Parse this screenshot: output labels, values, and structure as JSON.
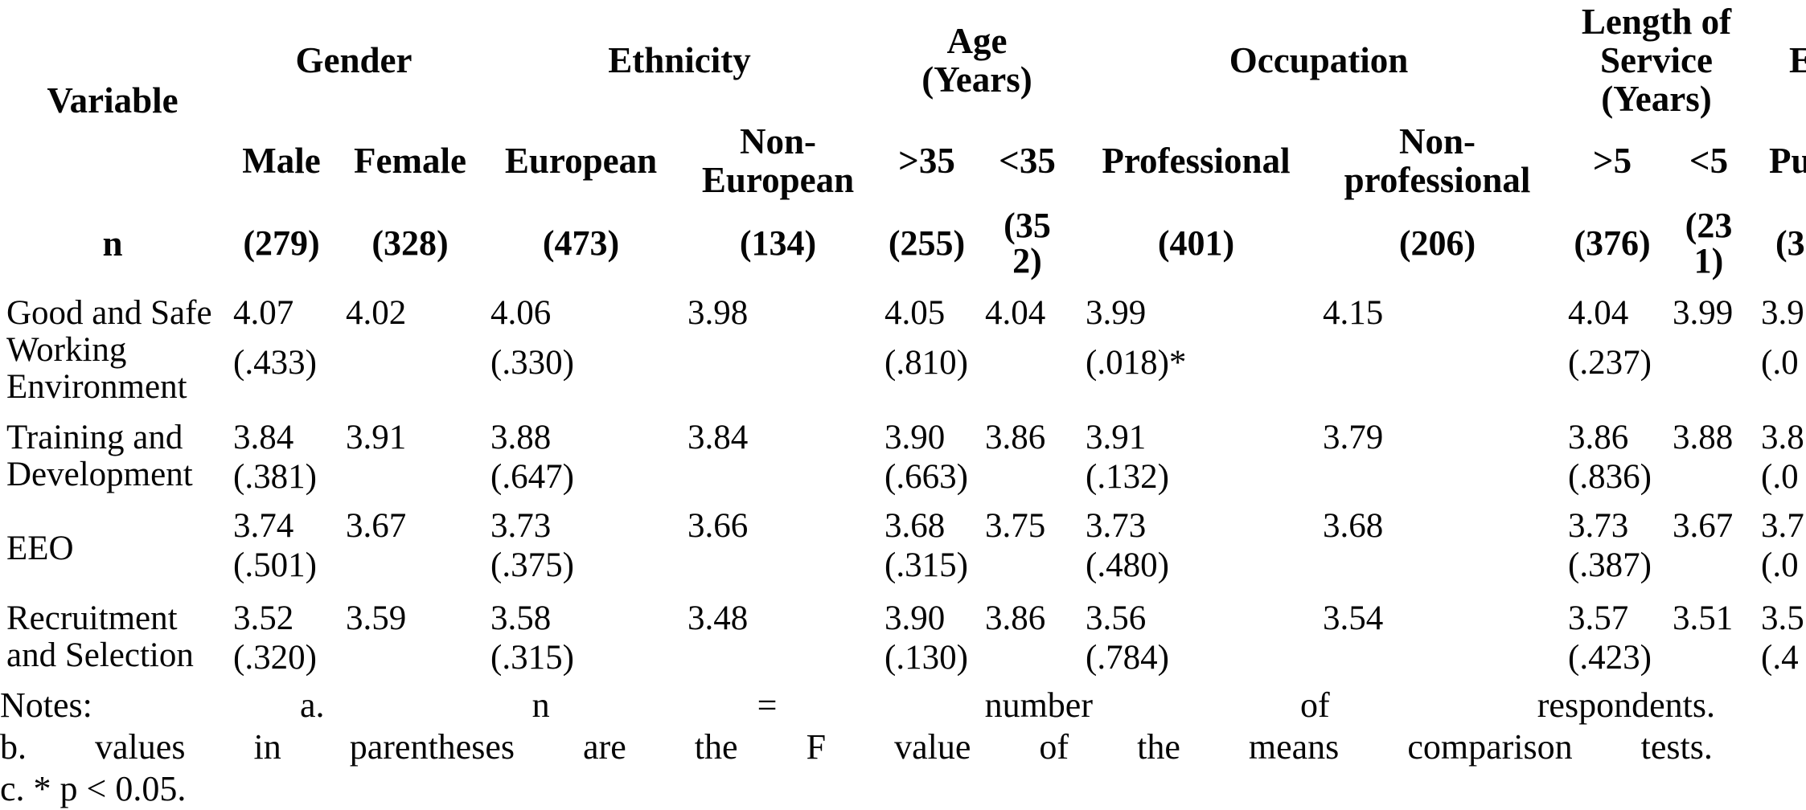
{
  "page": {
    "background": "#ffffff",
    "text_color": "#050505"
  },
  "table": {
    "corner_label": "Variable",
    "n_row_label": "n",
    "groups": [
      {
        "label": "Gender",
        "columns": [
          {
            "header": "Male",
            "n": "(279)"
          },
          {
            "header": "Female",
            "n": "(328)"
          }
        ]
      },
      {
        "label": "Ethnicity",
        "columns": [
          {
            "header": "European",
            "n": "(473)"
          },
          {
            "header": "Non-European",
            "n": "(134)"
          }
        ]
      },
      {
        "label": "Age (Years)",
        "columns": [
          {
            "header": ">35",
            "n": "(255)"
          },
          {
            "header": "<35",
            "n": "(352)",
            "n_wrapped": true
          }
        ]
      },
      {
        "label": "Occupation",
        "columns": [
          {
            "header": "Professional",
            "n": "(401)"
          },
          {
            "header": "Non-professional",
            "n": "(206)"
          }
        ]
      },
      {
        "label": "Length of Service (Years)",
        "columns": [
          {
            "header": ">5",
            "n": "(376)"
          },
          {
            "header": "<5",
            "n": "(231)",
            "n_wrapped": true
          }
        ]
      },
      {
        "label": "E",
        "clipped": true,
        "columns": [
          {
            "header": "Pu",
            "n": "(3",
            "clipped": true
          }
        ]
      }
    ],
    "rows": [
      {
        "variable": "Good and Safe Working Environment",
        "cells": [
          {
            "v": "4.07",
            "f": "(.433)"
          },
          {
            "v": "4.02",
            "f": ""
          },
          {
            "v": "4.06",
            "f": "(.330)"
          },
          {
            "v": "3.98",
            "f": ""
          },
          {
            "v": "4.05",
            "f": "(.810)"
          },
          {
            "v": "4.04",
            "f": ""
          },
          {
            "v": "3.99",
            "f": "(.018)*"
          },
          {
            "v": "4.15",
            "f": ""
          },
          {
            "v": "4.04",
            "f": "(.237)"
          },
          {
            "v": "3.99",
            "f": ""
          },
          {
            "v": "3.9",
            "f": "(.0"
          }
        ]
      },
      {
        "variable": "Training and Development",
        "cells": [
          {
            "v": "3.84",
            "f": "(.381)"
          },
          {
            "v": "3.91",
            "f": ""
          },
          {
            "v": "3.88",
            "f": "(.647)"
          },
          {
            "v": "3.84",
            "f": ""
          },
          {
            "v": "3.90",
            "f": "(.663)"
          },
          {
            "v": "3.86",
            "f": ""
          },
          {
            "v": "3.91",
            "f": "(.132)"
          },
          {
            "v": "3.79",
            "f": ""
          },
          {
            "v": "3.86",
            "f": "(.836)"
          },
          {
            "v": "3.88",
            "f": ""
          },
          {
            "v": "3.8",
            "f": "(.0"
          }
        ]
      },
      {
        "variable": "EEO",
        "cells": [
          {
            "v": "3.74",
            "f": "(.501)"
          },
          {
            "v": "3.67",
            "f": ""
          },
          {
            "v": "3.73",
            "f": "(.375)"
          },
          {
            "v": "3.66",
            "f": ""
          },
          {
            "v": "3.68",
            "f": "(.315)"
          },
          {
            "v": "3.75",
            "f": ""
          },
          {
            "v": "3.73",
            "f": "(.480)"
          },
          {
            "v": "3.68",
            "f": ""
          },
          {
            "v": "3.73",
            "f": "(.387)"
          },
          {
            "v": "3.67",
            "f": ""
          },
          {
            "v": "3.7",
            "f": "(.0"
          }
        ]
      },
      {
        "variable": "Recruitment and Selection",
        "cells": [
          {
            "v": "3.52",
            "f": "(.320)"
          },
          {
            "v": "3.59",
            "f": ""
          },
          {
            "v": "3.58",
            "f": "(.315)"
          },
          {
            "v": "3.48",
            "f": ""
          },
          {
            "v": "3.90",
            "f": "(.130)"
          },
          {
            "v": "3.86",
            "f": ""
          },
          {
            "v": "3.56",
            "f": "(.784)"
          },
          {
            "v": "3.54",
            "f": ""
          },
          {
            "v": "3.57",
            "f": "(.423)"
          },
          {
            "v": "3.51",
            "f": ""
          },
          {
            "v": "3.5",
            "f": "(.4"
          }
        ]
      }
    ]
  },
  "notes": {
    "line1_words": [
      "Notes:",
      "a.",
      "n",
      "=",
      "number",
      "of",
      "respondents."
    ],
    "line2_words": [
      "b.",
      "values",
      "in",
      "parentheses",
      "are",
      "the",
      "F",
      "value",
      "of",
      "the",
      "means",
      "comparison",
      "tests."
    ],
    "line3": "c. * p < 0.05."
  }
}
